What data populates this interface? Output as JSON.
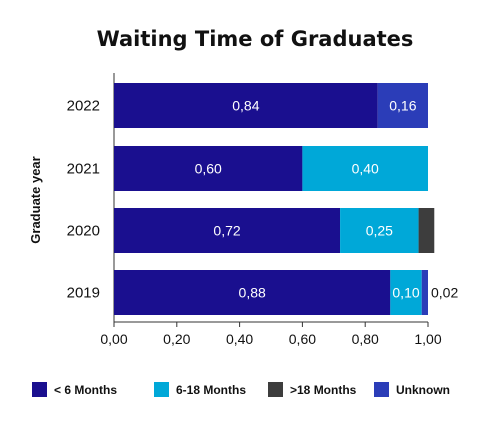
{
  "chart_data": {
    "type": "bar",
    "orientation": "horizontal",
    "stacked": true,
    "title": "Waiting Time of Graduates",
    "ylabel": "Graduate year",
    "xlabel": "",
    "xlim": [
      0,
      1
    ],
    "xticks": [
      "0,00",
      "0,20",
      "0,40",
      "0,60",
      "0,80",
      "1,00"
    ],
    "categories": [
      "2022",
      "2021",
      "2020",
      "2019"
    ],
    "series": [
      {
        "name": "< 6 Months",
        "color": "#1a0f8f",
        "values": [
          0.84,
          0.6,
          0.72,
          0.88
        ],
        "labels": [
          "0,84",
          "0,60",
          "0,72",
          "0,88"
        ]
      },
      {
        "name": "6-18 Months",
        "color": "#00a8d8",
        "values": [
          0.0,
          0.4,
          0.25,
          0.1
        ],
        "labels": [
          "",
          "0,40",
          "0,25",
          "0,10"
        ]
      },
      {
        "name": ">18 Months",
        "color": "#3d3d3d",
        "values": [
          0.0,
          0.0,
          0.05,
          0.0
        ],
        "labels": [
          "",
          "",
          "",
          ""
        ]
      },
      {
        "name": "Unknown",
        "color": "#2b3db8",
        "values": [
          0.16,
          0.0,
          0.0,
          0.02
        ],
        "labels": [
          "0,16",
          "",
          "",
          "0,02"
        ]
      }
    ],
    "grid": false,
    "legend": "bottom"
  }
}
